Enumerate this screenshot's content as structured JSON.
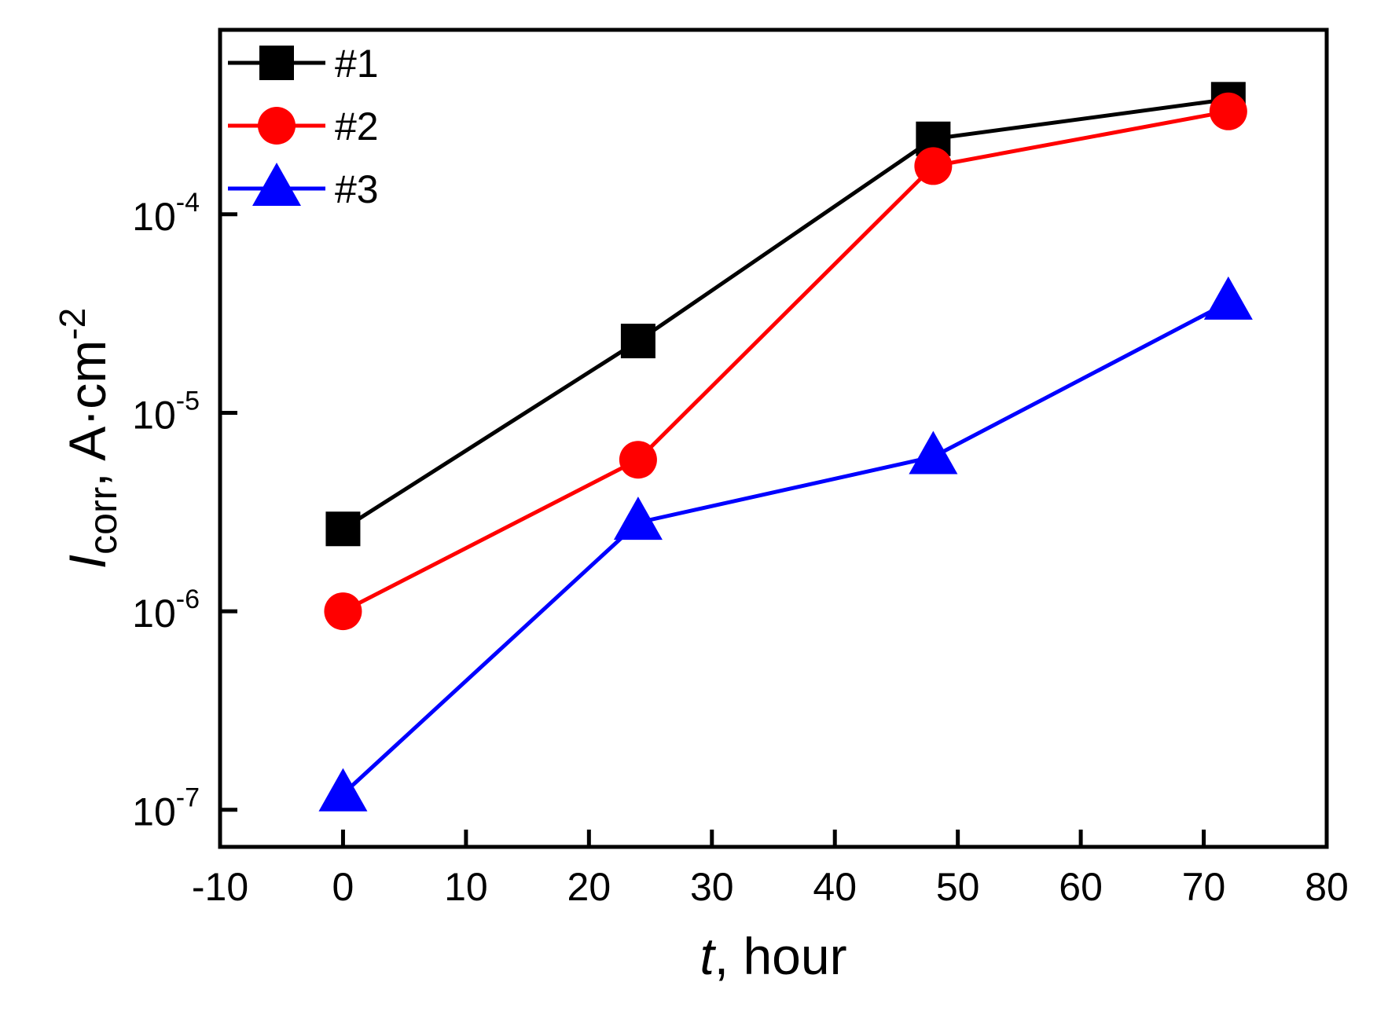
{
  "chart_data": {
    "type": "line",
    "xlabel_italic": "t",
    "xlabel_rest": ", hour",
    "ylabel_italic": "I",
    "ylabel_sub": "corr",
    "ylabel_unit": ", A·cm",
    "ylabel_sup": "-2",
    "x": [
      0,
      24,
      48,
      72
    ],
    "xlim": [
      -10,
      80
    ],
    "xticks": [
      -10,
      0,
      10,
      20,
      30,
      40,
      50,
      60,
      70,
      80
    ],
    "xtick_labels": [
      "-10",
      "0",
      "10",
      "20",
      "30",
      "40",
      "50",
      "60",
      "70",
      "80"
    ],
    "yscale": "log",
    "ylim": [
      6.5e-08,
      0.00085
    ],
    "yticks": [
      1e-07,
      1e-06,
      1e-05,
      0.0001
    ],
    "ytick_base": [
      "10",
      "10",
      "10",
      "10"
    ],
    "ytick_exp": [
      "-7",
      "-6",
      "-5",
      "-4"
    ],
    "series": [
      {
        "name": "#1",
        "color": "#000000",
        "marker": "square",
        "values": [
          2.6e-06,
          2.3e-05,
          0.00024,
          0.00038
        ]
      },
      {
        "name": "#2",
        "color": "#ff0000",
        "marker": "circle",
        "values": [
          1e-06,
          5.8e-06,
          0.000175,
          0.00033
        ]
      },
      {
        "name": "#3",
        "color": "#0000ff",
        "marker": "triangle",
        "values": [
          1.2e-07,
          2.8e-06,
          6e-06,
          3.6e-05
        ]
      }
    ],
    "legend": {
      "position": "top-left"
    }
  }
}
